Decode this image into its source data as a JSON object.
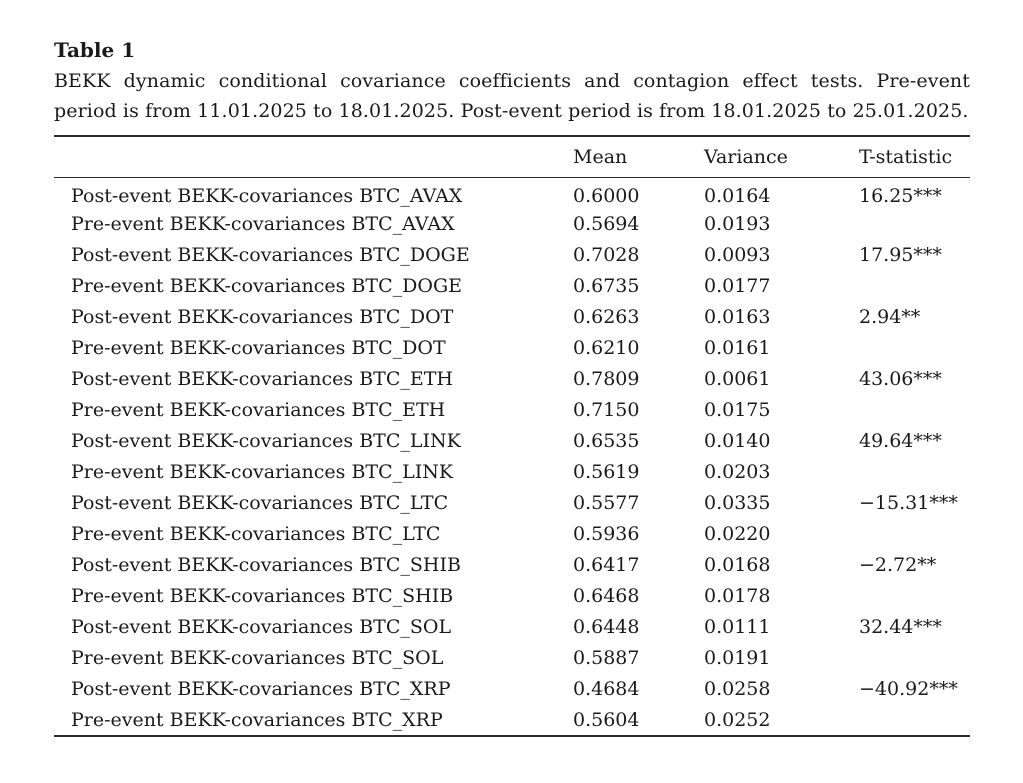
{
  "table": {
    "title": "Table 1",
    "caption": "BEKK dynamic conditional covariance coefficients and contagion effect tests. Pre-event period is from 11.01.2025 to 18.01.2025. Post-event period is from 18.01.2025 to 25.01.2025.",
    "headers": [
      "",
      "Mean",
      "Variance",
      "T-statistic"
    ],
    "rows": [
      {
        "label": "Post-event BEKK-covariances BTC_AVAX",
        "mean": "0.6000",
        "variance": "0.0164",
        "t": "16.25***"
      },
      {
        "label": "Pre-event BEKK-covariances BTC_AVAX",
        "mean": "0.5694",
        "variance": "0.0193",
        "t": ""
      },
      {
        "label": "Post-event BEKK-covariances BTC_DOGE",
        "mean": "0.7028",
        "variance": "0.0093",
        "t": "17.95***"
      },
      {
        "label": "Pre-event BEKK-covariances BTC_DOGE",
        "mean": "0.6735",
        "variance": "0.0177",
        "t": ""
      },
      {
        "label": "Post-event BEKK-covariances BTC_DOT",
        "mean": "0.6263",
        "variance": "0.0163",
        "t": "2.94**"
      },
      {
        "label": "Pre-event BEKK-covariances BTC_DOT",
        "mean": "0.6210",
        "variance": "0.0161",
        "t": ""
      },
      {
        "label": "Post-event BEKK-covariances BTC_ETH",
        "mean": "0.7809",
        "variance": "0.0061",
        "t": "43.06***"
      },
      {
        "label": "Pre-event BEKK-covariances BTC_ETH",
        "mean": "0.7150",
        "variance": "0.0175",
        "t": ""
      },
      {
        "label": "Post-event BEKK-covariances BTC_LINK",
        "mean": "0.6535",
        "variance": "0.0140",
        "t": "49.64***"
      },
      {
        "label": "Pre-event BEKK-covariances BTC_LINK",
        "mean": "0.5619",
        "variance": "0.0203",
        "t": ""
      },
      {
        "label": "Post-event BEKK-covariances BTC_LTC",
        "mean": "0.5577",
        "variance": "0.0335",
        "t": "−15.31***"
      },
      {
        "label": "Pre-event BEKK-covariances BTC_LTC",
        "mean": "0.5936",
        "variance": "0.0220",
        "t": ""
      },
      {
        "label": "Post-event BEKK-covariances BTC_SHIB",
        "mean": "0.6417",
        "variance": "0.0168",
        "t": "−2.72**"
      },
      {
        "label": "Pre-event BEKK-covariances BTC_SHIB",
        "mean": "0.6468",
        "variance": "0.0178",
        "t": ""
      },
      {
        "label": "Post-event BEKK-covariances BTC_SOL",
        "mean": "0.6448",
        "variance": "0.0111",
        "t": "32.44***"
      },
      {
        "label": "Pre-event BEKK-covariances BTC_SOL",
        "mean": "0.5887",
        "variance": "0.0191",
        "t": ""
      },
      {
        "label": "Post-event BEKK-covariances BTC_XRP",
        "mean": "0.4684",
        "variance": "0.0258",
        "t": "−40.92***"
      },
      {
        "label": "Pre-event BEKK-covariances BTC_XRP",
        "mean": "0.5604",
        "variance": "0.0252",
        "t": ""
      }
    ]
  }
}
